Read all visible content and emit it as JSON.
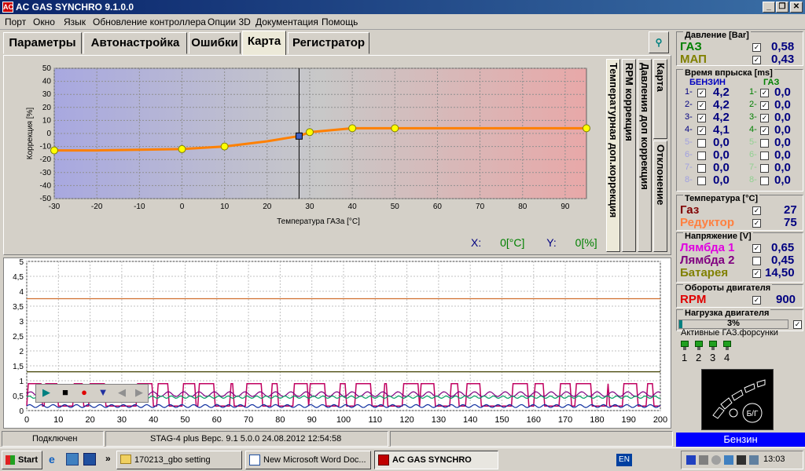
{
  "window": {
    "title": "AC GAS SYNCHRO  9.1.0.0",
    "icon_text": "AC"
  },
  "menu": [
    "Порт",
    "Окно",
    "Язык",
    "Обновление контроллера",
    "Опции 3D",
    "Документация",
    "Помощь"
  ],
  "tabs": [
    "Параметры",
    "Автонастройка",
    "Ошибки",
    "Карта",
    "Регистратор"
  ],
  "active_tab": "Карта",
  "side_tabs": [
    "Карта",
    "Давления доп коррекция",
    "RPM коррекция",
    "Температурная доп.коррекция",
    "Отклонение"
  ],
  "cursor": {
    "x_label": "X:",
    "x_value": "0[°C]",
    "y_label": "Y:",
    "y_value": "0[%]"
  },
  "chart_data": [
    {
      "type": "line",
      "xlabel": "Температура ГАЗа [°C]",
      "ylabel": "Коррекция [%]",
      "xlim": [
        -30,
        95
      ],
      "ylim": [
        -50,
        50
      ],
      "x_ticks": [
        "-30",
        "-20",
        "-10",
        "0",
        "10",
        "20",
        "30",
        "40",
        "50",
        "60",
        "70",
        "80",
        "90"
      ],
      "y_ticks": [
        "50",
        "40",
        "30",
        "20",
        "10",
        "0",
        "-10",
        "-20",
        "-30",
        "-40",
        "-50"
      ],
      "cursor_x": 27.5,
      "x": [
        -30,
        -20,
        -10,
        0,
        10,
        20,
        27.5,
        30,
        40,
        50,
        60,
        70,
        80,
        90,
        95
      ],
      "values": [
        -13,
        -13,
        -12.5,
        -12,
        -10,
        -6,
        -2,
        1,
        4,
        4,
        4,
        4,
        4,
        4,
        4
      ],
      "points_x": [
        -30,
        0,
        10,
        30,
        40,
        50,
        95
      ],
      "points_y": [
        -13,
        -12,
        -10,
        1,
        4,
        4,
        4
      ],
      "colors": {
        "line": "#ff8000",
        "point": "#ffff00",
        "cursor_point": "#4060c0"
      }
    },
    {
      "type": "line",
      "xlim": [
        0,
        200
      ],
      "ylim": [
        0,
        5
      ],
      "x_ticks": [
        "0",
        "10",
        "20",
        "30",
        "40",
        "50",
        "60",
        "70",
        "80",
        "90",
        "100",
        "110",
        "120",
        "130",
        "140",
        "150",
        "160",
        "170",
        "180",
        "190",
        "200"
      ],
      "y_ticks": [
        "5",
        "4,5",
        "4",
        "3,5",
        "3",
        "2,5",
        "2",
        "1,5",
        "1",
        "0,5",
        "0"
      ],
      "series": [
        {
          "color": "#d07030",
          "level": 3.75
        },
        {
          "color": "#404000",
          "level": 1.3
        },
        {
          "color": "#c00060",
          "level": 0.85
        },
        {
          "color": "#800080",
          "level": 0.55
        },
        {
          "color": "#00a060",
          "level": 0.45
        },
        {
          "color": "#1030a0",
          "level": 0.15
        }
      ]
    }
  ],
  "player": [
    "▶",
    "■",
    "●",
    "▼",
    "◀",
    "▶"
  ],
  "status": {
    "conn": "Подключен",
    "device": "STAG-4 plus  Верс. 9.1  5.0.0    24.08.2012 12:54:58"
  },
  "pressure": {
    "header": "Давление [Bar]",
    "gas_label": "ГАЗ",
    "gas_value": "0,58",
    "map_label": "МАП",
    "map_value": "0,43"
  },
  "injection": {
    "header": "Время впрыска [ms]",
    "petrol_label": "БЕНЗИН",
    "gas_label": "ГАЗ",
    "petrol": [
      "4,2",
      "4,2",
      "4,2",
      "4,1",
      "0,0",
      "0,0",
      "0,0",
      "0,0"
    ],
    "gas": [
      "0,0",
      "0,0",
      "0,0",
      "0,0",
      "0,0",
      "0,0",
      "0,0",
      "0,0"
    ],
    "idx": [
      "1-",
      "2-",
      "3-",
      "4-",
      "5-",
      "6-",
      "7-",
      "8-"
    ]
  },
  "temperature": {
    "header": "Температура  [°C]",
    "gas_label": "Газ",
    "gas_value": "27",
    "reducer_label": "Редуктор",
    "reducer_value": "75"
  },
  "voltage": {
    "header": "Напряжение [V]",
    "l1_label": "Лямбда 1",
    "l1_value": "0,65",
    "l2_label": "Лямбда 2",
    "l2_value": "0,45",
    "bat_label": "Батарея",
    "bat_value": "14,50"
  },
  "rpm": {
    "header": "Обороты двигателя",
    "label": "RPM",
    "value": "900"
  },
  "load": {
    "header": "Нагрузка двигателя",
    "value": "3%",
    "fraction": 0.03
  },
  "injectors": {
    "header": "Активные ГАЗ.форсунки",
    "nums": [
      "1",
      "2",
      "3",
      "4"
    ]
  },
  "gauge_label": "Б/Г",
  "fuel_mode": "Бензин",
  "taskbar": {
    "start": "Start",
    "items": [
      "170213_gbo setting",
      "New Microsoft Word Doc...",
      "AC GAS SYNCHRO"
    ],
    "lang": "EN",
    "clock": "13:03",
    "chev": "»"
  }
}
